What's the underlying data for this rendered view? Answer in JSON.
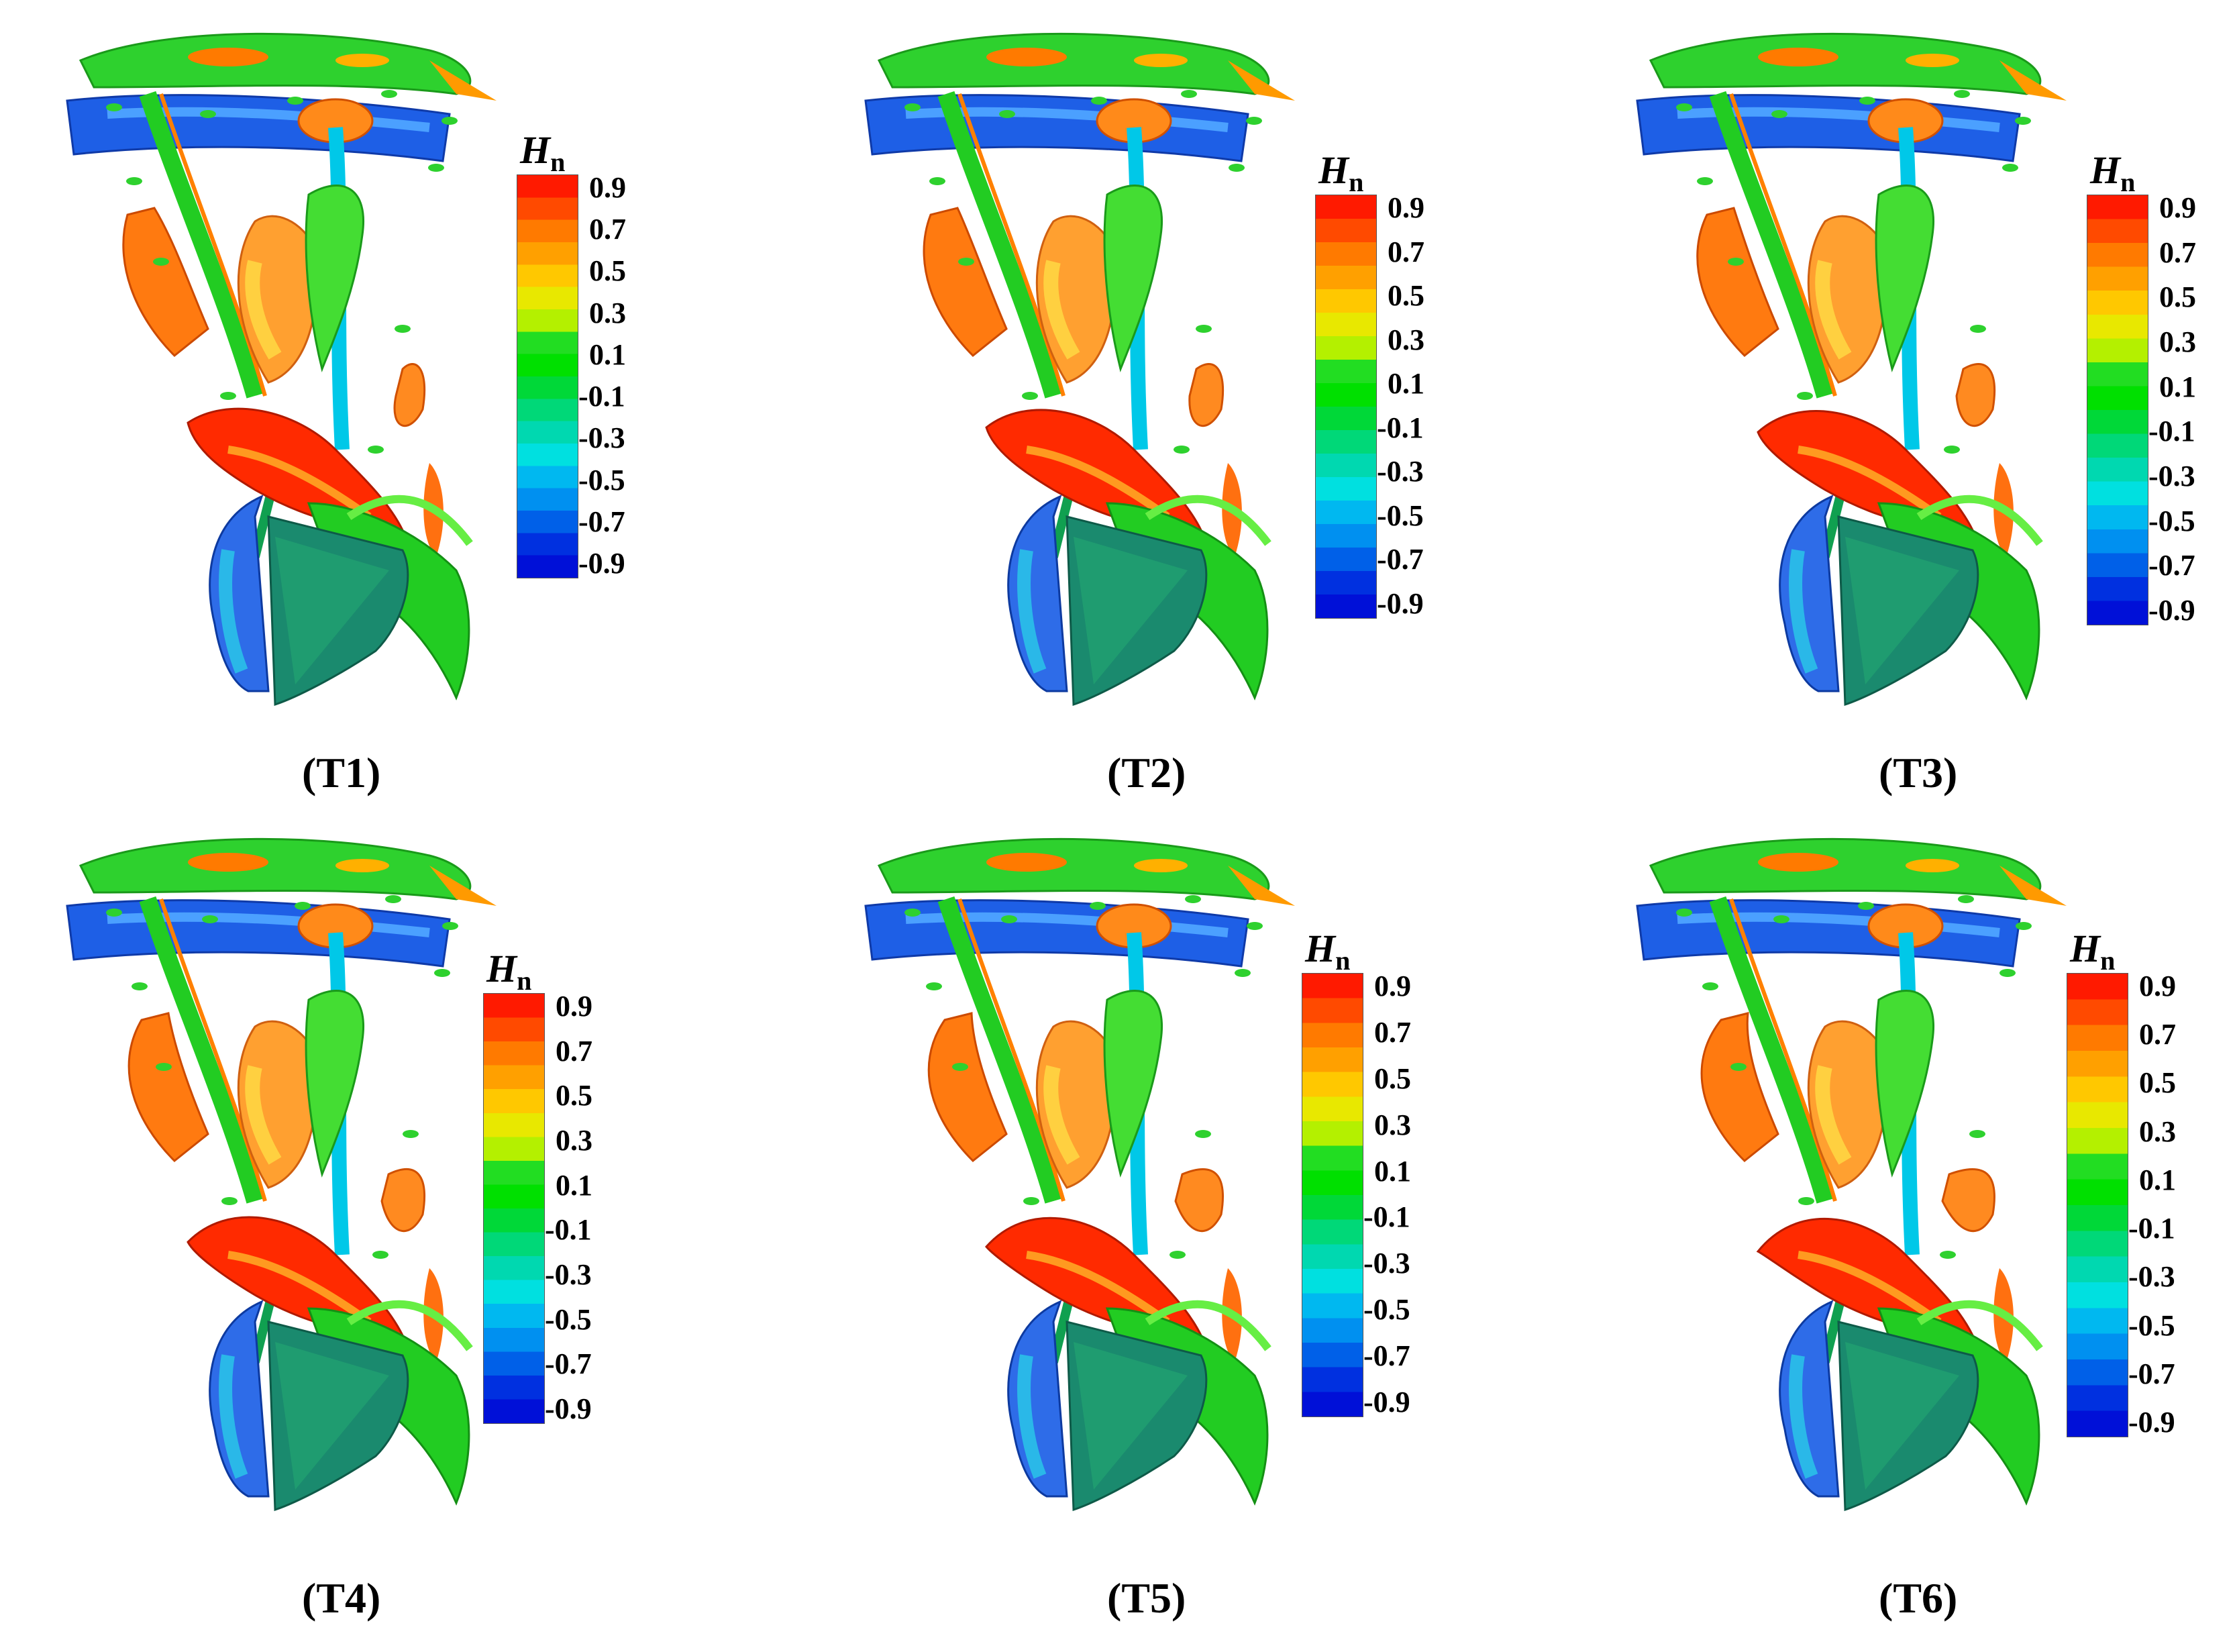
{
  "colorbar": {
    "label_main": "H",
    "label_sub": "n",
    "ticks": [
      "0.9",
      "0.7",
      "0.5",
      "0.3",
      "0.1",
      "-0.1",
      "-0.3",
      "-0.5",
      "-0.7",
      "-0.9"
    ],
    "colors": [
      "#ff1a00",
      "#ff4a00",
      "#ff7a00",
      "#ffa000",
      "#ffc800",
      "#e8e800",
      "#b4f000",
      "#22dd22",
      "#00e000",
      "#00d838",
      "#00d878",
      "#00d8b0",
      "#00e0e0",
      "#00b8f0",
      "#0090f0",
      "#0060e8",
      "#0030e0",
      "#0010d8"
    ]
  },
  "panels": [
    {
      "caption": "(T1)"
    },
    {
      "caption": "(T2)"
    },
    {
      "caption": "(T3)"
    },
    {
      "caption": "(T4)"
    },
    {
      "caption": "(T5)"
    },
    {
      "caption": "(T6)"
    }
  ]
}
